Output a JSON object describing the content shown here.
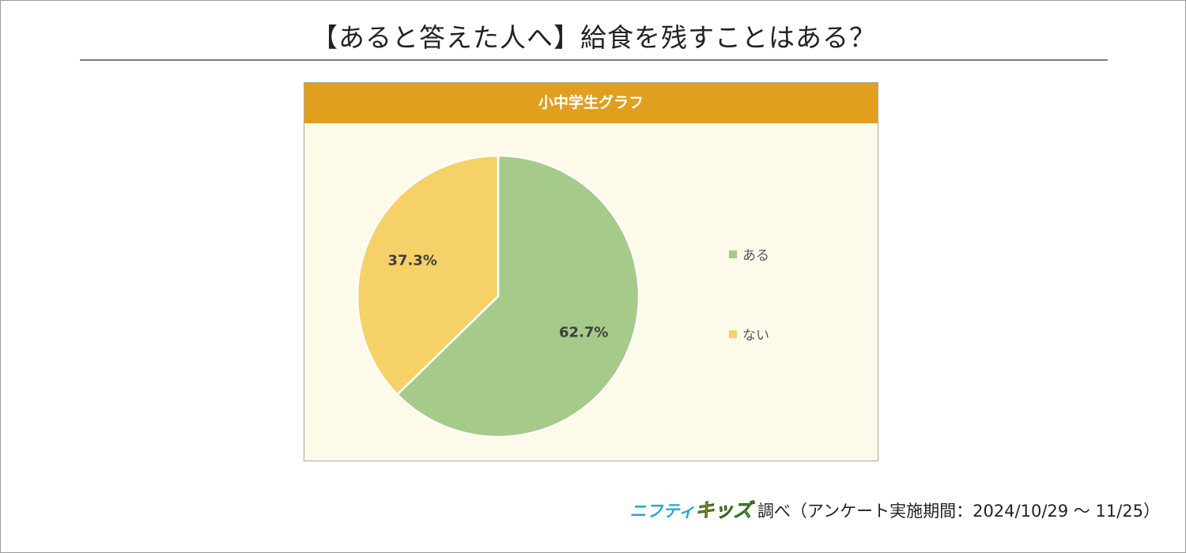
{
  "title": "【あると答えた人へ】給食を残すことはある？",
  "colors": {
    "header": "#e09f1e",
    "panel_bg": "#fdfaea",
    "slice_aru": "#a6ca8a",
    "slice_nai": "#f6d168"
  },
  "chart_data": {
    "type": "pie",
    "title": "小中学生グラフ",
    "slices": [
      {
        "label": "ある",
        "value": 62.7,
        "value_label": "62.7%",
        "color": "#a6ca8a"
      },
      {
        "label": "ない",
        "value": 37.3,
        "value_label": "37.3%",
        "color": "#f6d168"
      }
    ],
    "legend_position": "right"
  },
  "source": {
    "brand_nifty": "ニフティ",
    "brand_kids": [
      "キ",
      "ッ",
      "ズ"
    ],
    "brand_kids_colors": [
      "#f7c21a",
      "#e8731e",
      "#6dbb3a"
    ],
    "text": "調べ（アンケート実施期間：2024/10/29 ～ 11/25）"
  }
}
